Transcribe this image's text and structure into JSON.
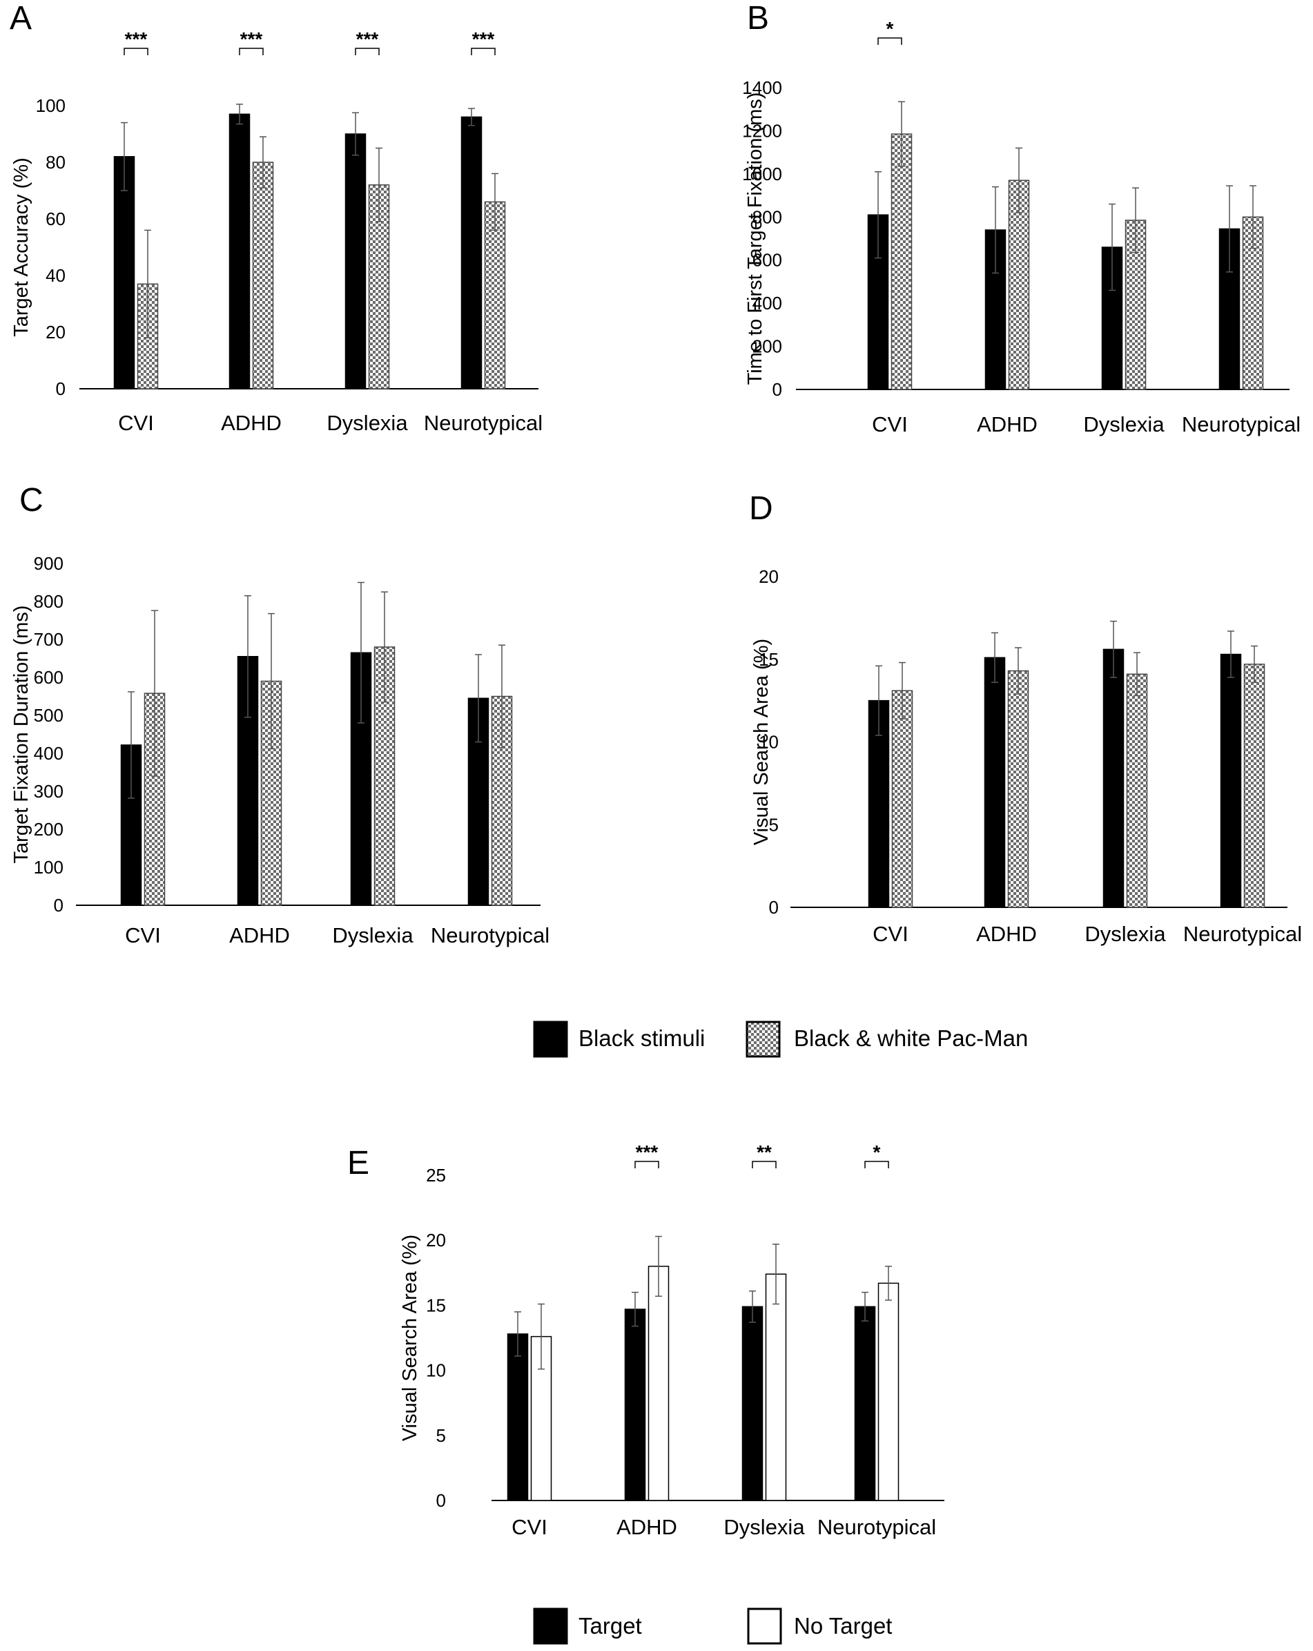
{
  "legends": {
    "top": [
      {
        "label": "Black stimuli",
        "style": "black"
      },
      {
        "label": "Black & white Pac-Man",
        "style": "checker"
      }
    ],
    "bottom": [
      {
        "label": "Target",
        "style": "black"
      },
      {
        "label": "No Target",
        "style": "white"
      }
    ]
  },
  "chart_data": [
    {
      "panel": "A",
      "type": "bar",
      "ylabel": "Target Accuracy (%)",
      "ylim": [
        0,
        100
      ],
      "yticks": [
        0,
        20,
        40,
        60,
        80,
        100
      ],
      "categories": [
        "CVI",
        "ADHD",
        "Dyslexia",
        "Neurotypical"
      ],
      "series": [
        {
          "name": "Black stimuli",
          "style": "black",
          "values": [
            82,
            97,
            90,
            96
          ],
          "errors": [
            12,
            3.5,
            7.5,
            3
          ]
        },
        {
          "name": "Black & white Pac-Man",
          "style": "checker",
          "values": [
            37,
            80,
            72,
            66
          ],
          "errors": [
            19,
            9,
            13,
            10
          ]
        }
      ],
      "significance": [
        "***",
        "***",
        "***",
        "***"
      ]
    },
    {
      "panel": "B",
      "type": "bar",
      "ylabel": "Time to First Target Fixation (ms)",
      "ylim": [
        0,
        1400
      ],
      "yticks": [
        0,
        200,
        400,
        600,
        800,
        1000,
        1200,
        1400
      ],
      "categories": [
        "CVI",
        "ADHD",
        "Dyslexia",
        "Neurotypical"
      ],
      "series": [
        {
          "name": "Black stimuli",
          "style": "black",
          "values": [
            810,
            740,
            660,
            745
          ],
          "errors": [
            200,
            200,
            200,
            200
          ]
        },
        {
          "name": "Black & white Pac-Man",
          "style": "checker",
          "values": [
            1185,
            970,
            785,
            800
          ],
          "errors": [
            150,
            150,
            150,
            145
          ]
        }
      ],
      "significance": [
        "*",
        "",
        "",
        ""
      ]
    },
    {
      "panel": "C",
      "type": "bar",
      "ylabel": "Target Fixation Duration (ms)",
      "ylim": [
        0,
        900
      ],
      "yticks": [
        0,
        100,
        200,
        300,
        400,
        500,
        600,
        700,
        800,
        900
      ],
      "categories": [
        "CVI",
        "ADHD",
        "Dyslexia",
        "Neurotypical"
      ],
      "series": [
        {
          "name": "Black stimuli",
          "style": "black",
          "values": [
            422,
            655,
            665,
            545
          ],
          "errors": [
            140,
            160,
            185,
            115
          ]
        },
        {
          "name": "Black & white Pac-Man",
          "style": "checker",
          "values": [
            558,
            590,
            680,
            550
          ],
          "errors": [
            218,
            178,
            145,
            135
          ]
        }
      ],
      "significance": [
        "",
        "",
        "",
        ""
      ]
    },
    {
      "panel": "D",
      "type": "bar",
      "ylabel": "Visual Search Area (%)",
      "ylim": [
        0,
        20
      ],
      "yticks": [
        0,
        5,
        10,
        15,
        20
      ],
      "categories": [
        "CVI",
        "ADHD",
        "Dyslexia",
        "Neurotypical"
      ],
      "series": [
        {
          "name": "Black stimuli",
          "style": "black",
          "values": [
            12.5,
            15.1,
            15.6,
            15.3
          ],
          "errors": [
            2.1,
            1.5,
            1.7,
            1.4
          ]
        },
        {
          "name": "Black & white Pac-Man",
          "style": "checker",
          "values": [
            13.1,
            14.3,
            14.1,
            14.7
          ],
          "errors": [
            1.7,
            1.4,
            1.3,
            1.1
          ]
        }
      ],
      "significance": [
        "",
        "",
        "",
        ""
      ]
    },
    {
      "panel": "E",
      "type": "bar",
      "ylabel": "Visual Search Area (%)",
      "ylim": [
        0,
        25
      ],
      "yticks": [
        0,
        5,
        10,
        15,
        20,
        25
      ],
      "categories": [
        "CVI",
        "ADHD",
        "Dyslexia",
        "Neurotypical"
      ],
      "series": [
        {
          "name": "Target",
          "style": "black",
          "values": [
            12.8,
            14.7,
            14.9,
            14.9
          ],
          "errors": [
            1.7,
            1.3,
            1.2,
            1.1
          ]
        },
        {
          "name": "No Target",
          "style": "white",
          "values": [
            12.6,
            18.0,
            17.4,
            16.7
          ],
          "errors": [
            2.5,
            2.3,
            2.3,
            1.3
          ]
        }
      ],
      "significance": [
        "",
        "***",
        "**",
        "*"
      ]
    }
  ]
}
